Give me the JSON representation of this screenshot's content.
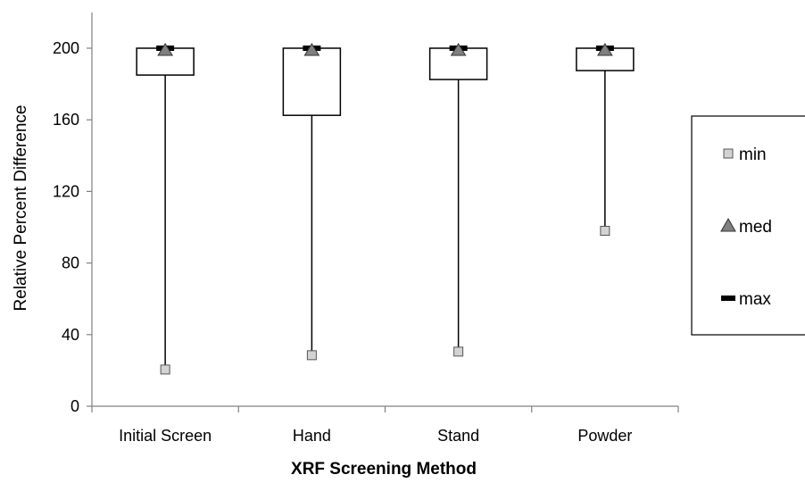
{
  "chart_data": {
    "type": "box",
    "title": "",
    "xlabel": "XRF Screening Method",
    "ylabel": "Relative Percent Difference",
    "ylim": [
      0,
      210
    ],
    "yticks": [
      "0",
      "40",
      "80",
      "120",
      "160",
      "200"
    ],
    "categories": [
      "Initial Screen",
      "Hand",
      "Stand",
      "Powder"
    ],
    "series": [
      {
        "name": "min",
        "values": [
          20.5,
          28.5,
          30.5,
          98
        ]
      },
      {
        "name": "med",
        "values": [
          199,
          199,
          199,
          199
        ]
      },
      {
        "name": "max",
        "values": [
          200,
          200,
          200,
          200
        ]
      }
    ],
    "box_lower": [
      185,
      162.5,
      182.5,
      187.5
    ],
    "box_upper": [
      200,
      200,
      200,
      200
    ],
    "legend": {
      "position": "right",
      "items": [
        {
          "label": "min",
          "marker": "square",
          "color": "#d3d3d3"
        },
        {
          "label": "med",
          "marker": "triangle",
          "color": "#808080"
        },
        {
          "label": "max",
          "marker": "dash",
          "color": "#000000"
        }
      ]
    },
    "grid": false
  }
}
